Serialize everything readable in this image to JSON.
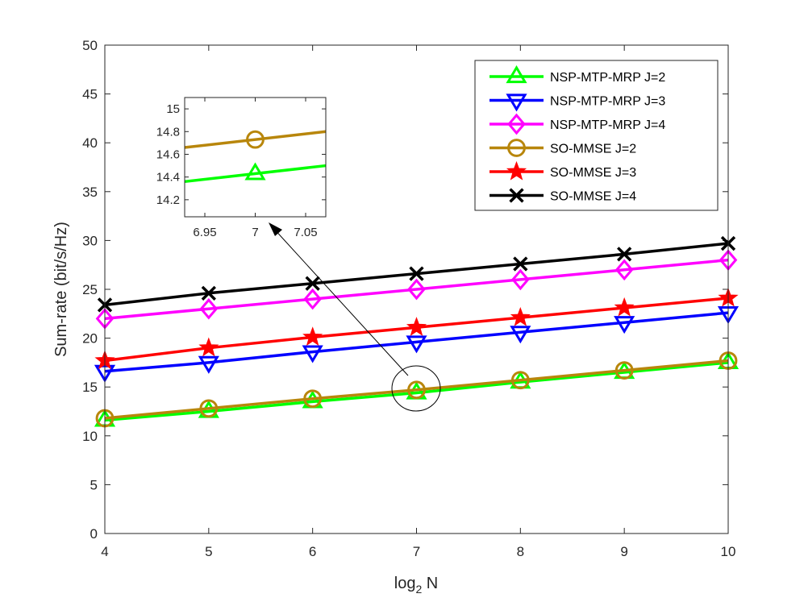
{
  "chart_data": {
    "type": "line",
    "title": "",
    "xlabel": "log",
    "xlabel_sub": "2",
    "xlabel_tail": " N",
    "ylabel": "Sum-rate (bit/s/Hz)",
    "x": [
      4,
      5,
      6,
      7,
      8,
      9,
      10
    ],
    "xlim": [
      4,
      10
    ],
    "ylim": [
      0,
      50
    ],
    "xticks": [
      "4",
      "5",
      "6",
      "7",
      "8",
      "9",
      "10"
    ],
    "yticks": [
      "0",
      "5",
      "10",
      "15",
      "20",
      "25",
      "30",
      "35",
      "40",
      "45",
      "50"
    ],
    "legend_position": "top-right",
    "series": [
      {
        "name": "NSP-MTP-MRP J=2",
        "color": "#00ff00",
        "marker": "triangle-up",
        "values": [
          11.6,
          12.5,
          13.5,
          14.4,
          15.5,
          16.5,
          17.5
        ]
      },
      {
        "name": "NSP-MTP-MRP J=3",
        "color": "#0000ff",
        "marker": "triangle-down",
        "values": [
          16.6,
          17.5,
          18.6,
          19.6,
          20.6,
          21.6,
          22.6
        ]
      },
      {
        "name": "NSP-MTP-MRP J=4",
        "color": "#ff00ff",
        "marker": "diamond",
        "values": [
          22.0,
          23.0,
          24.0,
          25.0,
          26.0,
          27.0,
          28.0
        ]
      },
      {
        "name": "SO-MMSE J=2",
        "color": "#b8860b",
        "marker": "circle",
        "values": [
          11.8,
          12.8,
          13.8,
          14.7,
          15.7,
          16.7,
          17.7
        ]
      },
      {
        "name": "SO-MMSE J=3",
        "color": "#ff0000",
        "marker": "star",
        "values": [
          17.7,
          19.0,
          20.1,
          21.1,
          22.1,
          23.1,
          24.1
        ]
      },
      {
        "name": "SO-MMSE J=4",
        "color": "#000000",
        "marker": "x",
        "values": [
          23.4,
          24.6,
          25.6,
          26.6,
          27.6,
          28.6,
          29.7
        ]
      }
    ],
    "inset": {
      "xlim": [
        6.93,
        7.07
      ],
      "ylim": [
        14.05,
        15.1
      ],
      "xticks": [
        "6.95",
        "7",
        "7.05"
      ],
      "ytick_values": [
        14.2,
        14.4,
        14.6,
        14.8,
        15.0
      ],
      "yticks": [
        "14.2",
        "14.4",
        "14.6",
        "14.8",
        "15"
      ],
      "series": [
        {
          "name": "SO-MMSE J=2",
          "color": "#b8860b",
          "marker": "circle",
          "x": [
            6.93,
            7.07
          ],
          "values": [
            14.66,
            14.8
          ],
          "marker_x": 7,
          "marker_y": 14.73
        },
        {
          "name": "NSP-MTP-MRP J=2",
          "color": "#00ff00",
          "marker": "triangle-up",
          "x": [
            6.93,
            7.07
          ],
          "values": [
            14.36,
            14.5
          ],
          "marker_x": 7,
          "marker_y": 14.43
        }
      ]
    }
  }
}
